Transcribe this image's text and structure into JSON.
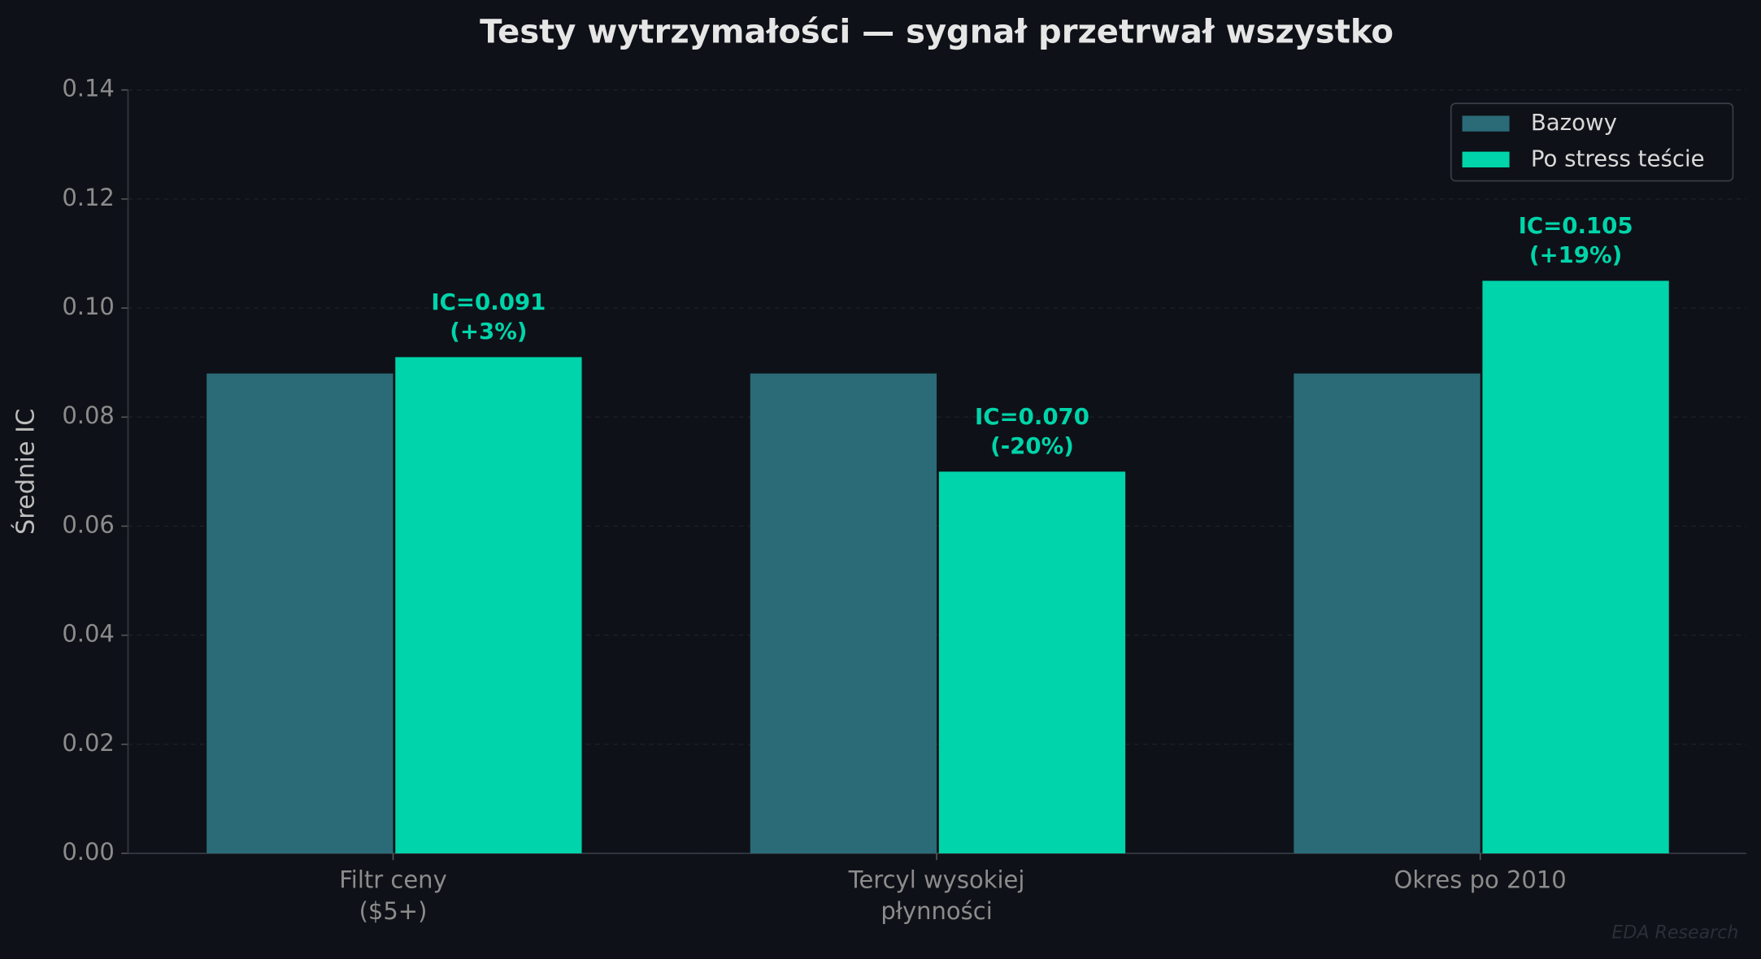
{
  "chart_data": {
    "type": "bar",
    "title": "Testy wytrzymałości — sygnał przetrwał wszystko",
    "y_label": "Średnie IC",
    "watermark": "EDA Research",
    "categories": [
      [
        "Filtr ceny",
        "($5+)"
      ],
      [
        "Tercyl wysokiej",
        "płynności"
      ],
      [
        "Okres po 2010"
      ]
    ],
    "series": [
      {
        "name": "Bazowy",
        "color": "#2a6b77",
        "values": [
          0.088,
          0.088,
          0.088
        ]
      },
      {
        "name": "Po stress teście",
        "color": "#00d4aa",
        "values": [
          0.091,
          0.07,
          0.105
        ],
        "value_labels": [
          [
            "IC=0.091",
            "(+3%)"
          ],
          [
            "IC=0.070",
            "(-20%)"
          ],
          [
            "IC=0.105",
            "(+19%)"
          ]
        ]
      }
    ],
    "ylim": [
      0,
      0.14
    ],
    "yticks": [
      {
        "value": 0,
        "label": "0.00"
      },
      0.02,
      0.04,
      0.06,
      0.08,
      {
        "value": 0.1,
        "label": "0.10"
      },
      0.12,
      0.14
    ],
    "grid": true,
    "legend": "upper right"
  }
}
